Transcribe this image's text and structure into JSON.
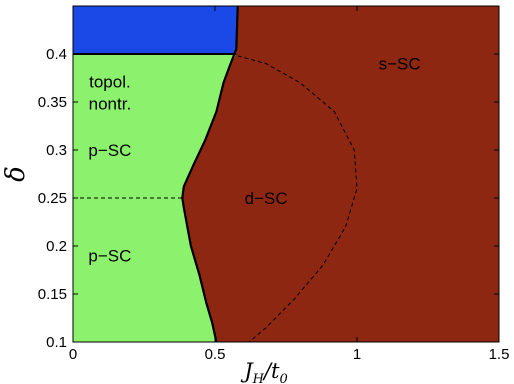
{
  "chart_data": {
    "type": "area",
    "title": "",
    "xlabel": {
      "main": "J",
      "sub": "H",
      "rest": "/t",
      "sub2": "0"
    },
    "ylabel": "δ",
    "xlim": [
      0,
      1.5
    ],
    "ylim": [
      0.1,
      0.45
    ],
    "x_ticks": [
      0,
      0.5,
      1,
      1.5
    ],
    "x_tick_labels": [
      "0",
      "0.5",
      "1",
      "1.5"
    ],
    "y_ticks": [
      0.1,
      0.15,
      0.2,
      0.25,
      0.3,
      0.35,
      0.4
    ],
    "y_tick_labels": [
      "0.1",
      "0.15",
      "0.2",
      "0.25",
      "0.3",
      "0.35",
      "0.4"
    ],
    "grid": false,
    "colors": {
      "topological": "#8cf26e",
      "d_sc": "#8e2712",
      "top_region": "#1b49e8",
      "boundary": "#000000"
    },
    "boundary_solid": [
      {
        "x": 0.58,
        "y": 0.45
      },
      {
        "x": 0.575,
        "y": 0.405
      },
      {
        "x": 0.555,
        "y": 0.39
      },
      {
        "x": 0.53,
        "y": 0.37
      },
      {
        "x": 0.505,
        "y": 0.34
      },
      {
        "x": 0.465,
        "y": 0.31
      },
      {
        "x": 0.425,
        "y": 0.285
      },
      {
        "x": 0.39,
        "y": 0.262
      },
      {
        "x": 0.385,
        "y": 0.25
      },
      {
        "x": 0.39,
        "y": 0.24
      },
      {
        "x": 0.415,
        "y": 0.2
      },
      {
        "x": 0.445,
        "y": 0.17
      },
      {
        "x": 0.47,
        "y": 0.14
      },
      {
        "x": 0.49,
        "y": 0.12
      },
      {
        "x": 0.505,
        "y": 0.1
      }
    ],
    "boundary_top_y": 0.4,
    "boundary_dashed_d_s": [
      {
        "x": 0.58,
        "y": 0.398
      },
      {
        "x": 0.68,
        "y": 0.39
      },
      {
        "x": 0.8,
        "y": 0.37
      },
      {
        "x": 0.92,
        "y": 0.34
      },
      {
        "x": 0.99,
        "y": 0.3
      },
      {
        "x": 1.0,
        "y": 0.26
      },
      {
        "x": 0.96,
        "y": 0.22
      },
      {
        "x": 0.88,
        "y": 0.18
      },
      {
        "x": 0.78,
        "y": 0.145
      },
      {
        "x": 0.68,
        "y": 0.115
      },
      {
        "x": 0.62,
        "y": 0.1
      }
    ],
    "dashed_hline": {
      "y": 0.25,
      "x0": 0.0,
      "x1": 0.385
    },
    "regions": [
      {
        "lines": [
          "topol.",
          "nontr."
        ],
        "x": 0.13,
        "y": 0.36
      },
      {
        "lines": [
          "p−SC"
        ],
        "x": 0.13,
        "y": 0.3
      },
      {
        "lines": [
          "p−SC"
        ],
        "x": 0.13,
        "y": 0.19
      },
      {
        "lines": [
          "d−SC"
        ],
        "x": 0.68,
        "y": 0.25
      },
      {
        "lines": [
          "s−SC"
        ],
        "x": 1.15,
        "y": 0.39
      }
    ]
  }
}
